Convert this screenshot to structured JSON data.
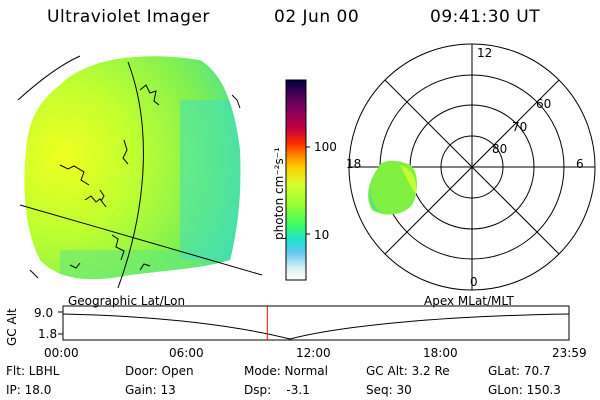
{
  "header": {
    "title": "Ultraviolet Imager",
    "date": "02 Jun 00",
    "time": "09:41:30 UT"
  },
  "colorbar": {
    "unit_label": "photon cm⁻²s⁻¹",
    "ticks": [
      "100",
      "10"
    ],
    "colors": [
      "#000040",
      "#3a0050",
      "#800060",
      "#c00040",
      "#ff3000",
      "#ff8c00",
      "#ffd000",
      "#d8ff30",
      "#98ff30",
      "#40ff60",
      "#20e0d0",
      "#60c8f0",
      "#d8f0f0",
      "#ffffff"
    ]
  },
  "polar_plot": {
    "mlt_labels": {
      "top": "12",
      "left": "18",
      "right": "6",
      "bottom": "0"
    },
    "lat_labels": [
      "60",
      "70",
      "80"
    ]
  },
  "coord_labels": {
    "left": "Geographic Lat/Lon",
    "right": "Apex MLat/MLT"
  },
  "timeline": {
    "axis_label": "GC Alt",
    "y_max": "9.0",
    "y_min": "1.8",
    "x_ticks": [
      "00:00",
      "06:00",
      "12:00",
      "18:00",
      "23:59"
    ],
    "marker_time": "09:41",
    "marker_color": "#ff0000"
  },
  "footer": {
    "row1": {
      "flt": "Flt: LBHL",
      "door": "Door: Open",
      "mode": "Mode: Normal",
      "gc_alt": "GC Alt: 3.2 Re",
      "glat": "GLat:  70.7"
    },
    "row2": {
      "ip": "IP: 18.0",
      "gain": "Gain: 13",
      "dsp": "Dsp:    -3.1",
      "seq": "Seq: 30",
      "glon": "GLon: 150.3"
    }
  }
}
